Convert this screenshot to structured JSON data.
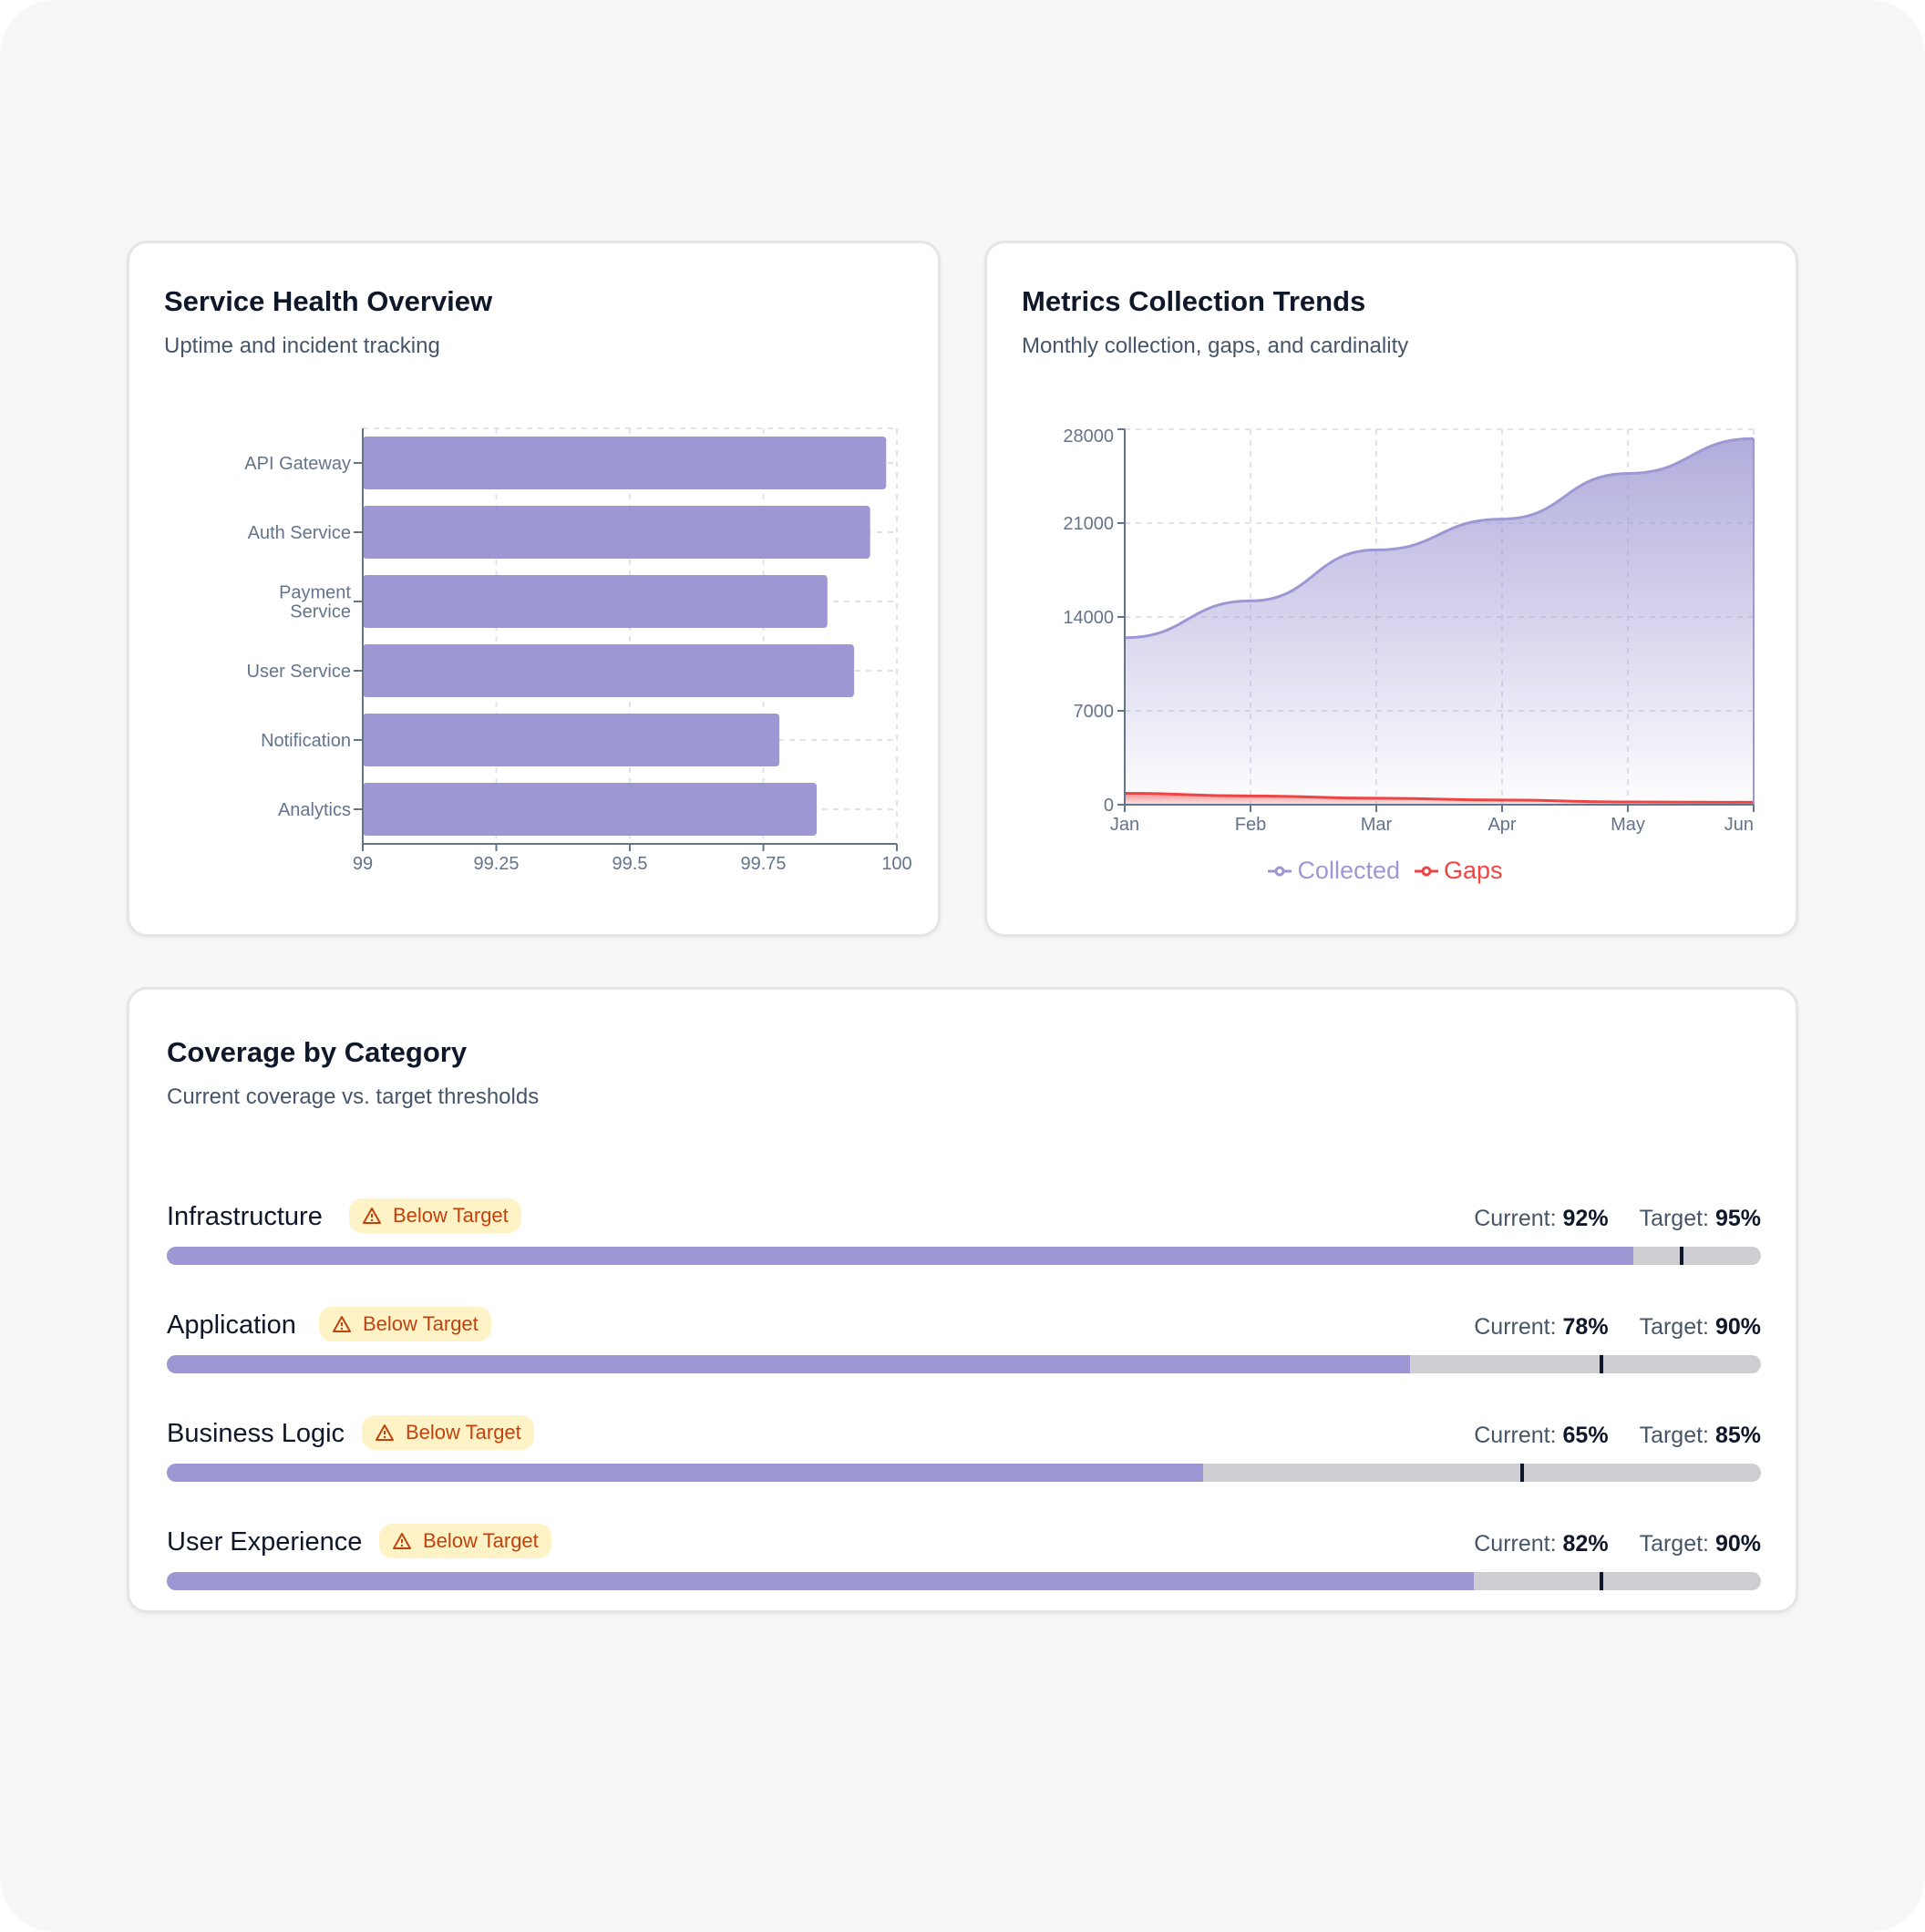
{
  "health": {
    "title": "Service Health Overview",
    "subtitle": "Uptime and incident tracking"
  },
  "trends": {
    "title": "Metrics Collection Trends",
    "subtitle": "Monthly collection, gaps, and cardinality"
  },
  "coverage": {
    "title": "Coverage by Category",
    "subtitle": "Current coverage vs. target thresholds",
    "current_label": "Current:",
    "target_label": "Target:",
    "badge_icon": "warning-triangle-icon",
    "rows": [
      {
        "name": "Infrastructure",
        "badge": "Below Target",
        "current": 92,
        "target": 95,
        "current_text": "92%",
        "target_text": "95%"
      },
      {
        "name": "Application",
        "badge": "Below Target",
        "current": 78,
        "target": 90,
        "current_text": "78%",
        "target_text": "90%"
      },
      {
        "name": "Business Logic",
        "badge": "Below Target",
        "current": 65,
        "target": 85,
        "current_text": "65%",
        "target_text": "85%"
      },
      {
        "name": "User Experience",
        "badge": "Below Target",
        "current": 82,
        "target": 90,
        "current_text": "82%",
        "target_text": "90%"
      }
    ]
  },
  "colors": {
    "bar": "#9d98d3",
    "collected": "#9d98d3",
    "gaps": "#ef4444",
    "track": "#cfcfd3",
    "badge_bg": "#fef3c7",
    "badge_text": "#c2410c"
  },
  "chart_data": [
    {
      "type": "bar",
      "orientation": "horizontal",
      "categories": [
        "API Gateway",
        "Auth Service",
        "Payment Service",
        "User Service",
        "Notification",
        "Analytics"
      ],
      "category_labels": [
        [
          "API Gateway"
        ],
        [
          "Auth Service"
        ],
        [
          "Payment",
          "Service"
        ],
        [
          "User Service"
        ],
        [
          "Notification"
        ],
        [
          "Analytics"
        ]
      ],
      "values": [
        99.98,
        99.95,
        99.87,
        99.92,
        99.78,
        99.85
      ],
      "xlim": [
        99,
        100
      ],
      "xticks": [
        "99",
        "99.25",
        "99.5",
        "99.75",
        "100"
      ],
      "xtick_values": [
        99,
        99.25,
        99.5,
        99.75,
        100
      ],
      "grid": true
    },
    {
      "type": "area",
      "categories": [
        "Jan",
        "Feb",
        "Mar",
        "Apr",
        "May",
        "Jun"
      ],
      "series": [
        {
          "name": "Collected",
          "values": [
            12450,
            15200,
            19000,
            21300,
            24700,
            27300
          ]
        },
        {
          "name": "Gaps",
          "values": [
            850,
            650,
            480,
            350,
            200,
            180
          ]
        }
      ],
      "ylim": [
        0,
        28000
      ],
      "yticks": [
        "0",
        "7000",
        "14000",
        "21000",
        "28000"
      ],
      "ytick_values": [
        0,
        7000,
        14000,
        21000,
        28000
      ],
      "grid": true,
      "legend": "bottom"
    }
  ]
}
